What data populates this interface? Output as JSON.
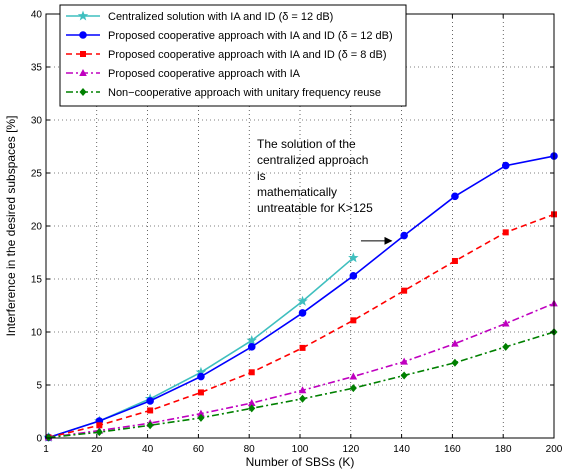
{
  "chart_data": {
    "type": "line",
    "xlabel": "Number of SBSs (K)",
    "ylabel": "Interference in the desired subspaces [%]",
    "xlim": [
      0,
      200
    ],
    "ylim": [
      0,
      40
    ],
    "xticks": [
      0,
      20,
      40,
      60,
      80,
      100,
      120,
      140,
      160,
      180,
      200
    ],
    "xtick_labels": [
      "1",
      "20",
      "40",
      "60",
      "80",
      "100",
      "120",
      "140",
      "160",
      "180",
      "200"
    ],
    "yticks": [
      0,
      5,
      10,
      15,
      20,
      25,
      30,
      35,
      40
    ],
    "grid": true,
    "legend_position": "top-left",
    "series": [
      {
        "name": "Centralized solution with IA and ID (δ = 12 dB)",
        "color": "#3fbfbf",
        "dash": "solid",
        "marker": "star",
        "x": [
          1,
          21,
          41,
          61,
          81,
          101,
          121
        ],
        "y": [
          0.05,
          1.6,
          3.7,
          6.2,
          9.2,
          12.9,
          17.0
        ]
      },
      {
        "name": "Proposed cooperative approach with IA and ID (δ = 12 dB)",
        "color": "#0000ff",
        "dash": "solid",
        "marker": "circle",
        "x": [
          1,
          21,
          41,
          61,
          81,
          101,
          121,
          141,
          161,
          181,
          200
        ],
        "y": [
          0.05,
          1.6,
          3.5,
          5.8,
          8.6,
          11.8,
          15.3,
          19.1,
          22.8,
          25.7,
          26.6
        ]
      },
      {
        "name": "Proposed cooperative approach with IA and ID (δ = 8 dB)",
        "color": "#ff0000",
        "dash": "dashed",
        "marker": "square",
        "x": [
          1,
          21,
          41,
          61,
          81,
          101,
          121,
          141,
          161,
          181,
          200
        ],
        "y": [
          0.05,
          1.2,
          2.6,
          4.3,
          6.2,
          8.5,
          11.1,
          13.9,
          16.7,
          19.4,
          21.1
        ]
      },
      {
        "name": "Proposed cooperative approach with IA",
        "color": "#bf00bf",
        "dash": "dashdot",
        "marker": "triangle",
        "x": [
          1,
          21,
          41,
          61,
          81,
          101,
          121,
          141,
          161,
          181,
          200
        ],
        "y": [
          0.05,
          0.7,
          1.4,
          2.3,
          3.3,
          4.5,
          5.8,
          7.2,
          8.9,
          10.8,
          12.7
        ]
      },
      {
        "name": "Non−cooperative approach with unitary frequency reuse",
        "color": "#008000",
        "dash": "dashdot",
        "marker": "diamond",
        "x": [
          1,
          21,
          41,
          61,
          81,
          101,
          121,
          141,
          161,
          181,
          200
        ],
        "y": [
          0.05,
          0.55,
          1.2,
          1.9,
          2.8,
          3.7,
          4.7,
          5.9,
          7.1,
          8.6,
          10.0
        ]
      }
    ],
    "annotation": {
      "lines": [
        "The solution of the",
        "centralized approach",
        "is",
        "mathematically",
        "untreatable for K>125"
      ],
      "arrow": {
        "from": [
          124,
          18.6
        ],
        "to": [
          136,
          18.6
        ]
      }
    }
  }
}
